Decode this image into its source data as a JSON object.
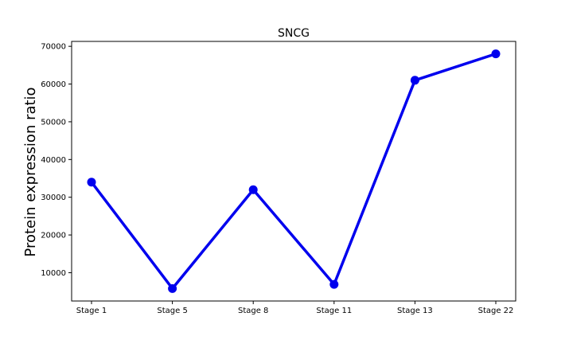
{
  "chart_data": {
    "type": "line",
    "title": "SNCG",
    "xlabel": "",
    "ylabel": "Protein expression ratio",
    "categories": [
      "Stage 1",
      "Stage 5",
      "Stage 8",
      "Stage 11",
      "Stage 13",
      "Stage 22"
    ],
    "series": [
      {
        "values": [
          34000,
          5800,
          32000,
          6900,
          61000,
          68000
        ],
        "color": "#0000ee"
      }
    ],
    "ylim": [
      2500,
      71300
    ],
    "yticks": [
      10000,
      20000,
      30000,
      40000,
      50000,
      60000,
      70000
    ],
    "ytick_labels": [
      "10000",
      "20000",
      "30000",
      "40000",
      "50000",
      "60000",
      "70000"
    ],
    "grid": false,
    "legend": "none"
  }
}
